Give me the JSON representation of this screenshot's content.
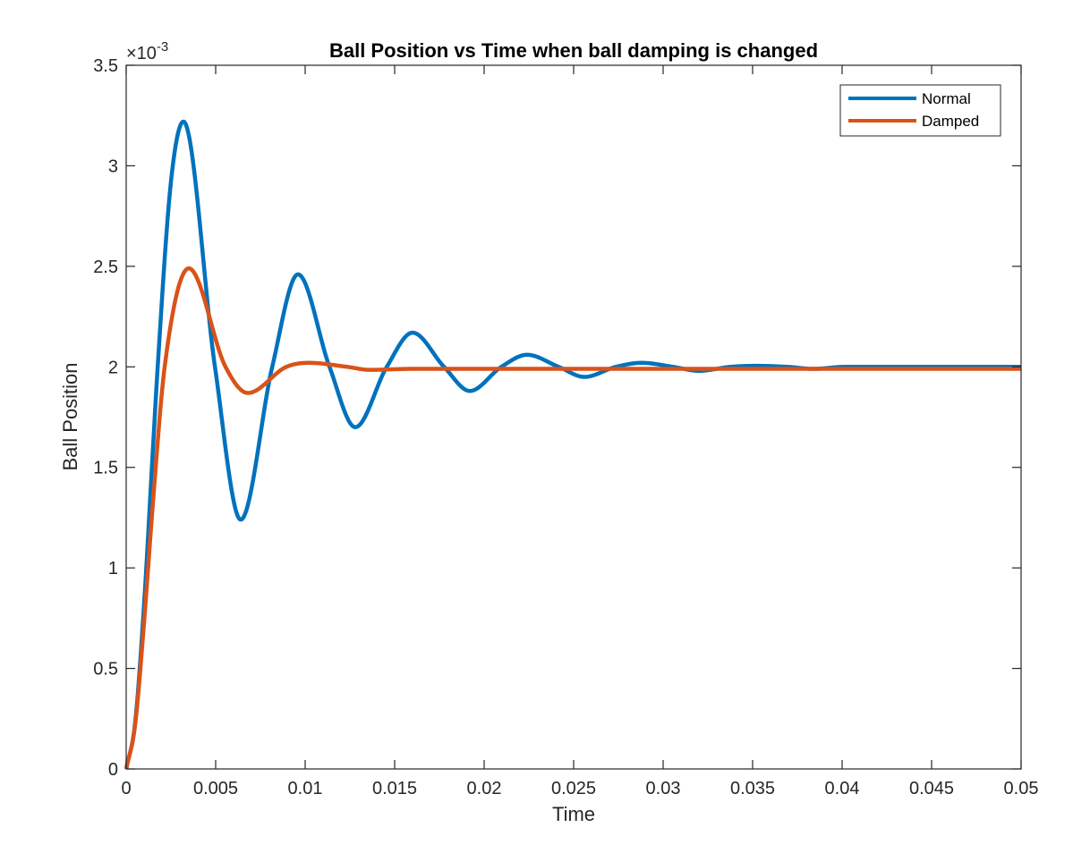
{
  "chart_data": {
    "type": "line",
    "title": "Ball Position vs Time when ball damping is changed",
    "xlabel": "Time",
    "ylabel": "Ball Position",
    "y_exponent_label": "×10",
    "y_exponent_power": "-3",
    "xlim": [
      0,
      0.05
    ],
    "ylim": [
      0,
      3.5
    ],
    "y_scale": 0.001,
    "xticks": [
      0,
      0.005,
      0.01,
      0.015,
      0.02,
      0.025,
      0.03,
      0.035,
      0.04,
      0.045,
      0.05
    ],
    "xtick_labels": [
      "0",
      "0.005",
      "0.01",
      "0.015",
      "0.02",
      "0.025",
      "0.03",
      "0.035",
      "0.04",
      "0.045",
      "0.05"
    ],
    "yticks": [
      0,
      0.5,
      1,
      1.5,
      2,
      2.5,
      3,
      3.5
    ],
    "ytick_labels": [
      "0",
      "0.5",
      "1",
      "1.5",
      "2",
      "2.5",
      "3",
      "3.5"
    ],
    "grid": false,
    "legend_position": "top-right",
    "series": [
      {
        "name": "Normal",
        "color": "#0072BD",
        "x": [
          0,
          0.0005,
          0.001,
          0.0015,
          0.00176,
          0.0025,
          0.0032,
          0.00496,
          0.0064,
          0.00816,
          0.0096,
          0.01136,
          0.0128,
          0.01456,
          0.016,
          0.01776,
          0.0192,
          0.02096,
          0.0224,
          0.02416,
          0.0256,
          0.02736,
          0.0288,
          0.03056,
          0.032,
          0.03376,
          0.0352,
          0.03696,
          0.0384,
          0.04016,
          0.0416,
          0.045,
          0.05
        ],
        "y": [
          0,
          0.23,
          0.82,
          1.6,
          2.0,
          2.92,
          3.22,
          2.0,
          1.24,
          2.0,
          2.46,
          2.0,
          1.7,
          2.0,
          2.17,
          2.0,
          1.88,
          2.0,
          2.06,
          2.0,
          1.95,
          2.0,
          2.02,
          2.0,
          1.98,
          2.0,
          2.005,
          2.0,
          1.99,
          2.0,
          2.0,
          2.0,
          2.0
        ]
      },
      {
        "name": "Damped",
        "color": "#D95319",
        "x": [
          0,
          0.0005,
          0.001,
          0.0015,
          0.00215,
          0.0035,
          0.00555,
          0.0068,
          0.00895,
          0.0102,
          0.01235,
          0.0136,
          0.016,
          0.02,
          0.03,
          0.04,
          0.05
        ],
        "y": [
          0,
          0.22,
          0.73,
          1.33,
          2.0,
          2.49,
          2.0,
          1.87,
          2.0,
          2.02,
          2.0,
          1.985,
          1.99,
          1.99,
          1.99,
          1.99,
          1.99
        ]
      }
    ]
  }
}
